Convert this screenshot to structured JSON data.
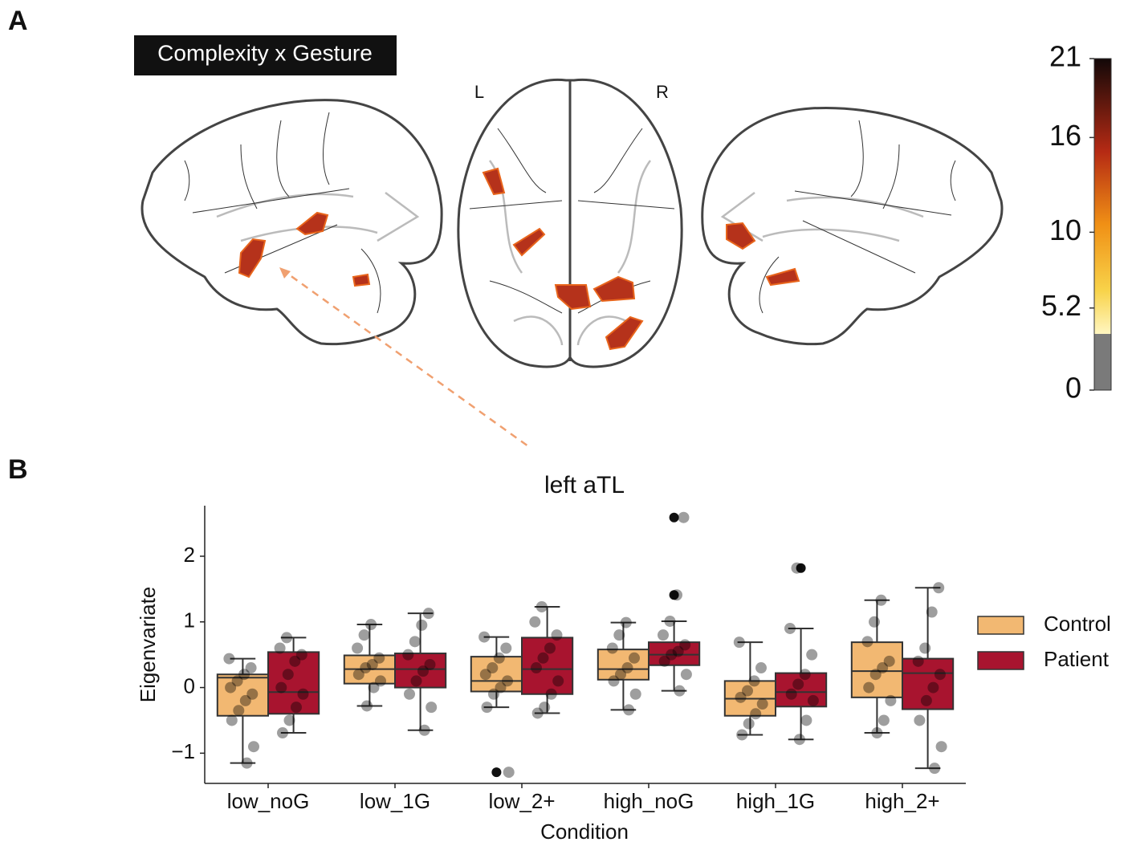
{
  "panel_labels": [
    "A",
    "B"
  ],
  "chart_data": [
    {
      "type": "colorbar",
      "title": "Complexity x Gesture",
      "hemisphere_labels": [
        "L",
        "R"
      ],
      "ylim": [
        0,
        21
      ],
      "yticks": [
        0,
        5.2,
        10,
        16,
        21
      ]
    },
    {
      "type": "box",
      "title": "left aTL",
      "x_label": "Condition",
      "y_label": "Eigenvariate",
      "categories": [
        "low_noG",
        "low_1G",
        "low_2+",
        "high_noG",
        "high_1G",
        "high_2+"
      ],
      "ylim": [
        -1.46,
        2.77
      ],
      "yticks": [
        {
          "value": -1,
          "label": "−1"
        },
        0,
        1,
        2
      ],
      "series": [
        {
          "name": "Control",
          "color": "#f2b872",
          "boxes": [
            {
              "whislo": -1.15,
              "q1": -0.43,
              "median": 0.15,
              "q3": 0.2,
              "whishi": 0.44,
              "outliers": []
            },
            {
              "whislo": -0.28,
              "q1": 0.06,
              "median": 0.28,
              "q3": 0.49,
              "whishi": 0.96,
              "outliers": []
            },
            {
              "whislo": -0.3,
              "q1": -0.06,
              "median": 0.1,
              "q3": 0.47,
              "whishi": 0.77,
              "outliers": [
                -1.29
              ]
            },
            {
              "whislo": -0.34,
              "q1": 0.12,
              "median": 0.28,
              "q3": 0.58,
              "whishi": 0.99,
              "outliers": []
            },
            {
              "whislo": -0.72,
              "q1": -0.43,
              "median": -0.17,
              "q3": 0.1,
              "whishi": 0.69,
              "outliers": []
            },
            {
              "whislo": -0.69,
              "q1": -0.15,
              "median": 0.25,
              "q3": 0.69,
              "whishi": 1.33,
              "outliers": []
            }
          ],
          "points": [
            [
              0.44,
              0.3,
              0.2,
              0.1,
              0,
              -0.1,
              -0.2,
              -0.35,
              -0.5,
              -0.9,
              -1.15
            ],
            [
              0.96,
              0.8,
              0.6,
              0.45,
              0.35,
              0.3,
              0.2,
              0.1,
              0,
              -0.28
            ],
            [
              0.77,
              0.6,
              0.45,
              0.3,
              0.2,
              0.1,
              0,
              -0.1,
              -0.3,
              -1.29
            ],
            [
              0.99,
              0.8,
              0.6,
              0.45,
              0.3,
              0.2,
              0.1,
              -0.1,
              -0.34
            ],
            [
              0.69,
              0.3,
              0.1,
              -0.05,
              -0.15,
              -0.25,
              -0.4,
              -0.55,
              -0.72
            ],
            [
              1.33,
              1.0,
              0.7,
              0.4,
              0.3,
              0.2,
              0,
              -0.2,
              -0.5,
              -0.69
            ]
          ]
        },
        {
          "name": "Patient",
          "color": "#a8142f",
          "boxes": [
            {
              "whislo": -0.69,
              "q1": -0.4,
              "median": -0.07,
              "q3": 0.54,
              "whishi": 0.76,
              "outliers": []
            },
            {
              "whislo": -0.65,
              "q1": 0,
              "median": 0.28,
              "q3": 0.52,
              "whishi": 1.13,
              "outliers": []
            },
            {
              "whislo": -0.39,
              "q1": -0.1,
              "median": 0.28,
              "q3": 0.76,
              "whishi": 1.23,
              "outliers": []
            },
            {
              "whislo": -0.05,
              "q1": 0.34,
              "median": 0.5,
              "q3": 0.69,
              "whishi": 1.01,
              "outliers": [
                2.59,
                1.41
              ]
            },
            {
              "whislo": -0.79,
              "q1": -0.29,
              "median": -0.07,
              "q3": 0.22,
              "whishi": 0.9,
              "outliers": [
                1.82
              ]
            },
            {
              "whislo": -1.23,
              "q1": -0.33,
              "median": 0.22,
              "q3": 0.44,
              "whishi": 1.52,
              "outliers": []
            }
          ],
          "points": [
            [
              0.76,
              0.6,
              0.5,
              0.4,
              0.2,
              0,
              -0.1,
              -0.3,
              -0.5,
              -0.69
            ],
            [
              1.13,
              0.95,
              0.7,
              0.5,
              0.35,
              0.25,
              0.1,
              -0.1,
              -0.3,
              -0.65
            ],
            [
              1.23,
              1.0,
              0.8,
              0.6,
              0.45,
              0.3,
              0.1,
              -0.1,
              -0.3,
              -0.39
            ],
            [
              2.59,
              1.41,
              1.01,
              0.8,
              0.65,
              0.55,
              0.5,
              0.4,
              0.2,
              -0.05
            ],
            [
              1.82,
              0.9,
              0.5,
              0.2,
              0.05,
              -0.1,
              -0.2,
              -0.5,
              -0.79
            ],
            [
              1.52,
              1.15,
              0.6,
              0.4,
              0.2,
              0,
              -0.2,
              -0.5,
              -0.9,
              -1.23
            ]
          ]
        }
      ],
      "legend": "right"
    }
  ]
}
